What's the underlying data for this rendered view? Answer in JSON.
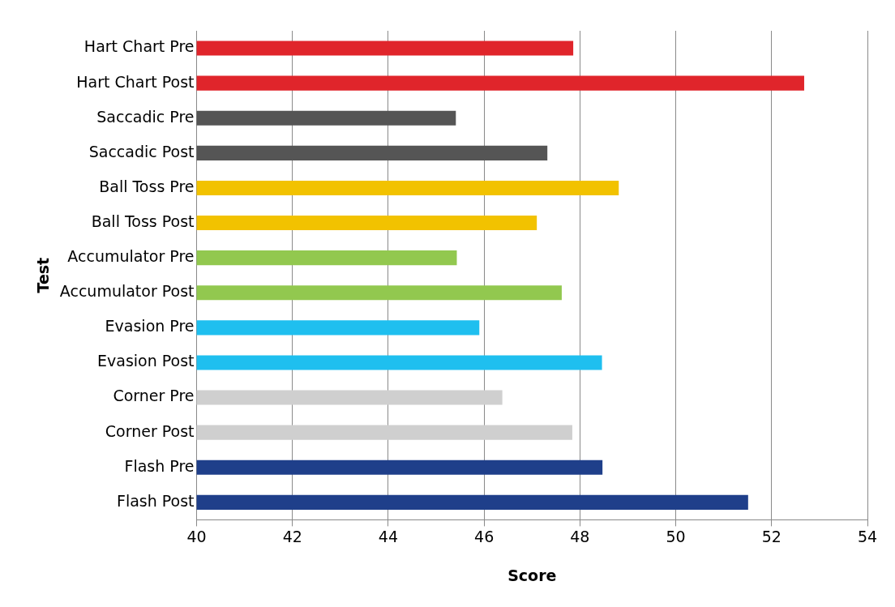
{
  "chart_data": {
    "type": "bar",
    "orientation": "horizontal",
    "xlabel": "Score",
    "ylabel": "Test",
    "categories": [
      "Hart Chart Pre",
      "Hart Chart Post",
      "Saccadic Pre",
      "Saccadic Post",
      "Ball Toss Pre",
      "Ball Toss Post",
      "Accumulator Pre",
      "Accumulator Post",
      "Evasion Pre",
      "Evasion Post",
      "Corner Pre",
      "Corner Post",
      "Flash Pre",
      "Flash Post"
    ],
    "values": [
      47.86,
      52.68,
      45.41,
      47.32,
      48.81,
      47.1,
      45.43,
      47.62,
      45.9,
      48.46,
      46.38,
      47.84,
      48.47,
      51.51
    ],
    "colors": [
      "#e0252b",
      "#e0252b",
      "#555555",
      "#555555",
      "#f2c200",
      "#f2c200",
      "#92c84f",
      "#92c84f",
      "#1fbfef",
      "#1fbfef",
      "#cfcfcf",
      "#cfcfcf",
      "#1f3f8a",
      "#1f3f8a"
    ],
    "xlim": [
      40,
      54
    ],
    "xticks": [
      40,
      42,
      44,
      46,
      48,
      50,
      52,
      54
    ],
    "grid": "x"
  }
}
